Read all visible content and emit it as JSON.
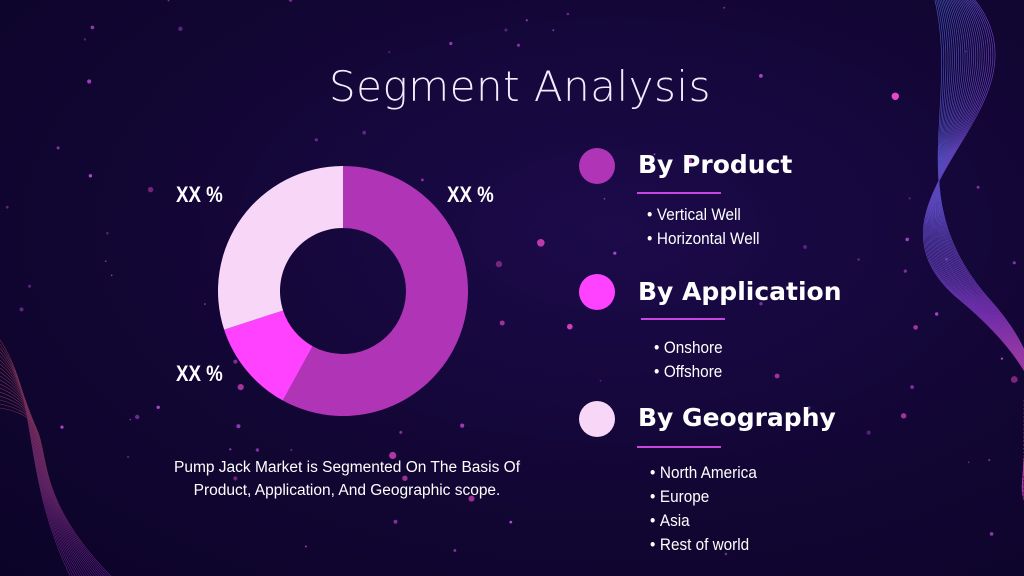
{
  "title": "Segment Analysis",
  "chart_data": {
    "type": "pie",
    "variant": "donut",
    "slices": [
      {
        "label": "XX %",
        "value": 58,
        "color": "#b034b6"
      },
      {
        "label": "XX %",
        "value": 12,
        "color": "#ff42ff"
      },
      {
        "label": "XX %",
        "value": 30,
        "color": "#f8d6f8"
      }
    ]
  },
  "caption": {
    "line1": "Pump Jack Market is Segmented On The Basis Of",
    "line2": "Product, Application, And Geographic scope."
  },
  "segments": [
    {
      "title": "By Product",
      "color": "#b034b6",
      "items": [
        "Vertical Well",
        "Horizontal Well"
      ]
    },
    {
      "title": "By Application",
      "color": "#ff42ff",
      "items": [
        "Onshore",
        "Offshore"
      ]
    },
    {
      "title": "By Geography",
      "color": "#f8d6f8",
      "items": [
        "North America",
        "Europe",
        "Asia",
        "Rest of world"
      ]
    }
  ],
  "colors": {
    "background": "#120634",
    "accent_line": "#c746e0"
  }
}
